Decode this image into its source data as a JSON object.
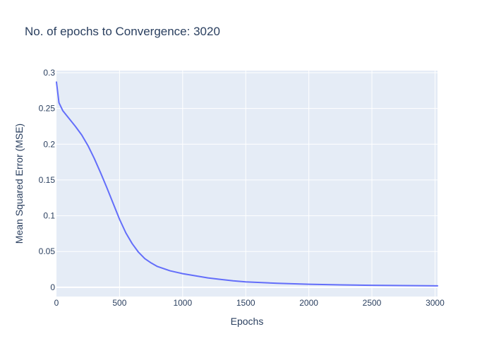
{
  "chart_data": {
    "type": "line",
    "title": "No. of epochs to Convergence: 3020",
    "xlabel": "Epochs",
    "ylabel": "Mean Squared Error (MSE)",
    "xlim": [
      0,
      3020
    ],
    "ylim": [
      -0.013,
      0.303
    ],
    "x_ticks": [
      0,
      500,
      1000,
      1500,
      2000,
      2500,
      3000
    ],
    "x_tick_labels": [
      "0",
      "500",
      "1000",
      "1500",
      "2000",
      "2500",
      "3000"
    ],
    "y_ticks": [
      0,
      0.05,
      0.1,
      0.15,
      0.2,
      0.25,
      0.3
    ],
    "y_tick_labels": [
      "0",
      "0.05",
      "0.1",
      "0.15",
      "0.2",
      "0.25",
      "0.3"
    ],
    "grid": true,
    "legend": false,
    "series": [
      {
        "color": "#636efa",
        "x": [
          0,
          20,
          50,
          100,
          150,
          200,
          250,
          300,
          350,
          400,
          450,
          500,
          550,
          600,
          650,
          700,
          750,
          800,
          900,
          1000,
          1100,
          1200,
          1300,
          1400,
          1500,
          1750,
          2000,
          2250,
          2500,
          2750,
          3020
        ],
        "y": [
          0.287,
          0.258,
          0.247,
          0.236,
          0.225,
          0.213,
          0.198,
          0.18,
          0.16,
          0.139,
          0.117,
          0.095,
          0.076,
          0.061,
          0.049,
          0.04,
          0.034,
          0.029,
          0.023,
          0.019,
          0.016,
          0.013,
          0.011,
          0.009,
          0.0075,
          0.0055,
          0.0042,
          0.0033,
          0.0027,
          0.0023,
          0.0019
        ]
      }
    ]
  },
  "colors": {
    "plot_background": "#e5ecf6",
    "gridline": "#ffffff",
    "text": "#2a3f5f",
    "line": "#636efa"
  }
}
